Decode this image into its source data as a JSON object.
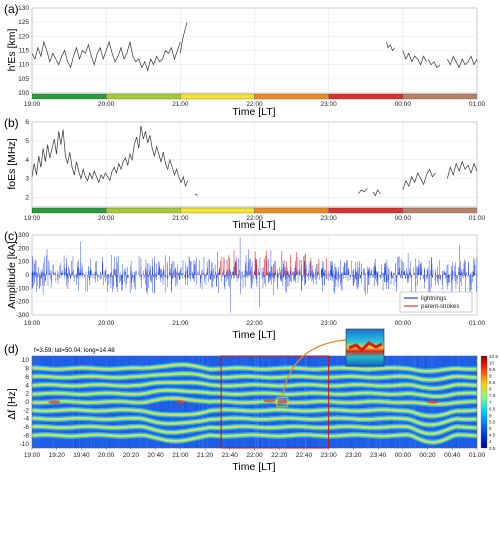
{
  "chart_data": [
    {
      "panel": "(a)",
      "type": "line",
      "xlabel": "Time [LT]",
      "ylabel": "h'Es [km]",
      "ylim": [
        100,
        130
      ],
      "yticks": [
        "100",
        "105",
        "110",
        "115",
        "120",
        "125",
        "130"
      ],
      "xtick_labels": [
        "19:00",
        "20:00",
        "21:00",
        "22:00",
        "23:00",
        "00:00",
        "01:00"
      ],
      "color_bar_segments": [
        "#2a9a3c",
        "#a8c93a",
        "#f3e33a",
        "#e98a2a",
        "#d8322e",
        "#b8826a"
      ],
      "series": [
        {
          "color": "#333333",
          "segments": [
            {
              "x": [
                0.0,
                0.04,
                0.08,
                0.12,
                0.16,
                0.2,
                0.24,
                0.28,
                0.32,
                0.36,
                0.4,
                0.44,
                0.48,
                0.52,
                0.56,
                0.6,
                0.64,
                0.68,
                0.72,
                0.76,
                0.8,
                0.84,
                0.88,
                0.92,
                0.96,
                1.0,
                1.04,
                1.08,
                1.12,
                1.16,
                1.2,
                1.24,
                1.28,
                1.32,
                1.36,
                1.4,
                1.44,
                1.48,
                1.52,
                1.56,
                1.6,
                1.64,
                1.68,
                1.72,
                1.76,
                1.8,
                1.84,
                1.88,
                1.92,
                1.96,
                2.0
              ],
              "y": [
                114,
                112,
                116,
                113,
                118,
                115,
                111,
                114,
                112,
                110,
                113,
                115,
                111,
                109,
                113,
                116,
                112,
                115,
                114,
                117,
                113,
                110,
                114,
                116,
                112,
                115,
                118,
                114,
                111,
                113,
                116,
                112,
                114,
                118,
                113,
                111,
                112,
                109,
                111,
                108,
                112,
                110,
                113,
                111,
                112,
                115,
                114,
                116,
                112,
                115,
                118
              ]
            },
            {
              "x": [
                2.0,
                2.03,
                2.06,
                2.09
              ],
              "y": [
                114,
                119,
                122,
                125
              ]
            },
            {
              "x": [
                4.78,
                4.8,
                4.83,
                4.86,
                4.89
              ],
              "y": [
                118,
                116,
                117,
                115,
                116
              ]
            },
            {
              "x": [
                5.0,
                5.04,
                5.08,
                5.12,
                5.16,
                5.2,
                5.24,
                5.28,
                5.32
              ],
              "y": [
                115,
                112,
                114,
                111,
                113,
                112,
                110,
                113,
                111
              ]
            },
            {
              "x": [
                5.34,
                5.38,
                5.42,
                5.46,
                5.5
              ],
              "y": [
                112,
                110,
                111,
                109,
                110
              ]
            },
            {
              "x": [
                5.6,
                5.64,
                5.68,
                5.72,
                5.76,
                5.8,
                5.84,
                5.88,
                5.92,
                5.96,
                6.0
              ],
              "y": [
                112,
                110,
                113,
                111,
                109,
                112,
                110,
                111,
                113,
                110,
                112
              ]
            }
          ]
        }
      ]
    },
    {
      "panel": "(b)",
      "type": "line",
      "xlabel": "Time [LT]",
      "ylabel": "foEs [MHz]",
      "ylim": [
        1.5,
        6
      ],
      "yticks": [
        "2",
        "3",
        "4",
        "5",
        "6"
      ],
      "xtick_labels": [
        "19:00",
        "20:00",
        "21:00",
        "22:00",
        "23:00",
        "00:00",
        "01:00"
      ],
      "color_bar_segments": [
        "#2a9a3c",
        "#a8c93a",
        "#f3e33a",
        "#e98a2a",
        "#d8322e",
        "#b8826a"
      ],
      "series": [
        {
          "color": "#333333",
          "segments": [
            {
              "x": [
                0.0,
                0.03,
                0.06,
                0.09,
                0.12,
                0.15,
                0.18,
                0.21,
                0.24,
                0.27,
                0.3,
                0.33,
                0.36,
                0.39,
                0.42,
                0.45,
                0.48,
                0.51,
                0.54,
                0.57,
                0.6,
                0.63,
                0.66,
                0.69,
                0.72,
                0.75,
                0.78,
                0.81,
                0.84,
                0.87,
                0.9,
                0.93,
                0.96,
                0.99,
                1.02,
                1.05,
                1.08,
                1.11,
                1.14,
                1.17,
                1.2,
                1.23,
                1.26,
                1.29,
                1.32,
                1.35,
                1.38,
                1.41,
                1.44,
                1.47,
                1.5,
                1.53,
                1.56,
                1.59,
                1.62,
                1.65,
                1.68,
                1.71,
                1.74,
                1.77,
                1.8,
                1.83,
                1.86,
                1.89,
                1.92,
                1.95,
                1.98,
                2.01,
                2.04,
                2.07,
                2.1
              ],
              "y": [
                3.1,
                3.8,
                3.2,
                4.2,
                3.6,
                4.6,
                3.9,
                4.8,
                4.1,
                4.6,
                5.1,
                4.3,
                5.5,
                4.8,
                5.6,
                4.2,
                3.8,
                4.4,
                3.6,
                3.2,
                3.9,
                3.4,
                3.0,
                3.5,
                3.1,
                2.9,
                3.3,
                3.0,
                3.4,
                3.1,
                2.8,
                3.2,
                3.0,
                3.3,
                3.1,
                2.9,
                3.4,
                3.6,
                3.3,
                3.8,
                3.5,
                3.9,
                4.1,
                3.7,
                4.3,
                4.0,
                4.8,
                5.2,
                4.6,
                5.8,
                5.1,
                5.5,
                4.9,
                5.3,
                4.6,
                4.2,
                4.7,
                4.3,
                3.9,
                4.4,
                3.8,
                3.5,
                4.0,
                3.6,
                3.2,
                3.5,
                3.1,
                2.8,
                3.1,
                2.6,
                2.9
              ]
            },
            {
              "x": [
                2.2,
                2.23
              ],
              "y": [
                2.2,
                2.1
              ]
            },
            {
              "x": [
                4.4,
                4.44,
                4.48,
                4.52
              ],
              "y": [
                2.2,
                2.4,
                2.3,
                2.5
              ]
            },
            {
              "x": [
                4.6,
                4.63,
                4.66,
                4.7
              ],
              "y": [
                2.3,
                2.1,
                2.4,
                2.2
              ]
            },
            {
              "x": [
                5.0,
                5.04,
                5.08,
                5.12,
                5.16,
                5.2,
                5.24,
                5.28,
                5.32,
                5.36,
                5.4,
                5.44
              ],
              "y": [
                2.4,
                2.9,
                2.6,
                3.1,
                2.8,
                3.3,
                3.0,
                2.7,
                3.2,
                3.5,
                3.1,
                3.3
              ]
            },
            {
              "x": [
                5.6,
                5.64,
                5.68,
                5.72,
                5.76,
                5.8,
                5.84,
                5.88,
                5.92,
                5.96,
                6.0
              ],
              "y": [
                3.0,
                3.6,
                3.2,
                3.8,
                3.4,
                3.9,
                3.5,
                3.7,
                3.3,
                3.8,
                3.4
              ]
            }
          ]
        }
      ]
    },
    {
      "panel": "(c)",
      "type": "bar",
      "xlabel": "Time [LT]",
      "ylabel": "Amplitude [kA]",
      "ylim": [
        -300,
        300
      ],
      "yticks": [
        "-300",
        "-200",
        "-100",
        "0",
        "100",
        "200",
        "300"
      ],
      "xtick_labels": [
        "19:00",
        "20:00",
        "21:00",
        "22:00",
        "23:00",
        "00:00",
        "01:00"
      ],
      "legend": {
        "position": "bottom-right",
        "entries": [
          "lightnings",
          "parent-strokes"
        ]
      },
      "series": [
        {
          "name": "lightnings",
          "color": "#1f3fd8",
          "x_range": [
            0,
            6
          ],
          "typical_abs": 80,
          "peak_abs": 290
        },
        {
          "name": "parent-strokes",
          "color": "#e0302a",
          "x_range": [
            2.5,
            4.0
          ],
          "typical_abs": 100,
          "peak_abs": 200
        }
      ]
    },
    {
      "panel": "(d)",
      "type": "heatmap",
      "info_text": "f=3.59; lat=50.04; long=14.48",
      "xlabel": "Time [LT]",
      "ylabel": "Δf [Hz]",
      "ylim": [
        -11,
        11
      ],
      "yticks": [
        "-10",
        "-8",
        "-6",
        "-4",
        "-2",
        "0",
        "2",
        "4",
        "6",
        "8",
        "10"
      ],
      "xtick_labels": [
        "19:00",
        "19:20",
        "19:40",
        "20:00",
        "20:20",
        "20:40",
        "21:00",
        "21:20",
        "21:40",
        "22:00",
        "22:20",
        "22:40",
        "23:00",
        "23:20",
        "23:40",
        "00:00",
        "00:20",
        "00:40",
        "01:00"
      ],
      "colorbar": {
        "min": 3.5,
        "max": 10.5,
        "ticks": [
          "10.5",
          "10",
          "9.5",
          "9",
          "8.5",
          "8",
          "7.5",
          "7",
          "6.5",
          "6",
          "5.5",
          "5",
          "4.5",
          "4",
          "3.5"
        ]
      },
      "bands_hz": [
        -8,
        -6,
        -4,
        -2,
        0,
        2,
        4,
        6,
        8
      ],
      "highlight_box": {
        "x_range": [
          2.55,
          4.0
        ],
        "y_range": [
          -11,
          11
        ]
      },
      "zoom_box": {
        "x_range": [
          3.3,
          3.45
        ],
        "y_range": [
          -1,
          1
        ]
      }
    }
  ]
}
